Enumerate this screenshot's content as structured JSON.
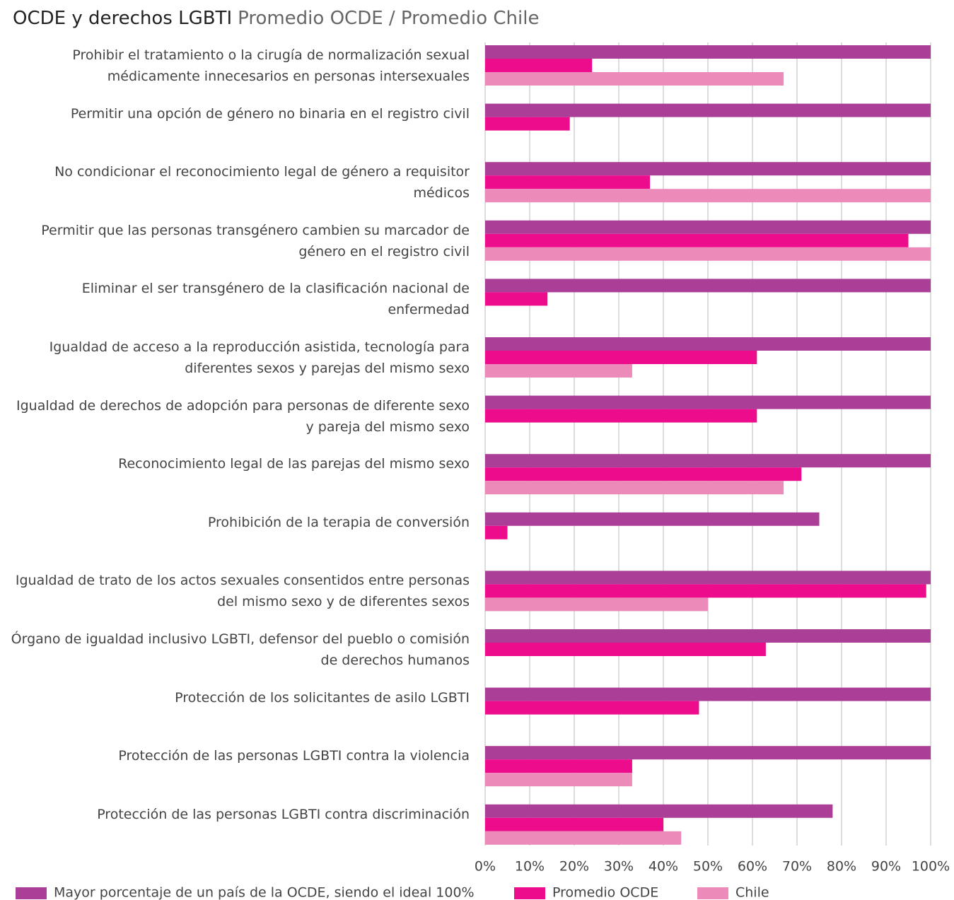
{
  "chart_data": {
    "type": "hbar",
    "title": "OCDE y derechos LGBTI",
    "subtitle": "Promedio OCDE / Promedio Chile",
    "categories": [
      "Prohibir el tratamiento o la cirugía de normalización sexual médicamente innecesarios en personas intersexuales",
      "Permitir una opción de género no binaria en el registro civil",
      "No condicionar el reconocimiento legal de género a requisitor médicos",
      "Permitir que las personas transgénero cambien su marcador de género en el registro civil",
      "Eliminar el ser transgénero de la clasificación nacional de enfermedad",
      "Igualdad de acceso a la reproducción asistida, tecnología para diferentes sexos y parejas del mismo sexo",
      "Igualdad de derechos de adopción para personas de diferente sexo y pareja del mismo sexo",
      "Reconocimiento legal de las parejas del mismo sexo",
      "Prohibición de la terapia de conversión",
      "Igualdad de trato de los actos sexuales consentidos entre personas del mismo sexo y de diferentes sexos",
      "Órgano de igualdad inclusivo LGBTI, defensor del pueblo o comisión de derechos humanos",
      "Protección de los solicitantes de asilo LGBTI",
      "Protección de las personas LGBTI contra la violencia",
      "Protección de las personas LGBTI contra discriminación"
    ],
    "series": [
      {
        "name": "Mayor porcentaje de un país de la OCDE, siendo el ideal 100%",
        "color": "#ab3f98",
        "values": [
          100,
          100,
          100,
          100,
          100,
          100,
          100,
          100,
          75,
          100,
          100,
          100,
          100,
          78
        ]
      },
      {
        "name": "Promedio OCDE",
        "color": "#ed0c8c",
        "values": [
          24,
          19,
          37,
          95,
          14,
          61,
          61,
          71,
          5,
          99,
          63,
          48,
          33,
          40
        ]
      },
      {
        "name": "Chile",
        "color": "#ec8ab9",
        "values": [
          67,
          null,
          100,
          100,
          null,
          33,
          null,
          67,
          null,
          50,
          null,
          null,
          33,
          44
        ]
      }
    ],
    "xlim": [
      0,
      100
    ],
    "xticks": [
      {
        "value": 0,
        "label": "0%"
      },
      {
        "value": 10,
        "label": "10%"
      },
      {
        "value": 20,
        "label": "20%"
      },
      {
        "value": 30,
        "label": "30%"
      },
      {
        "value": 40,
        "label": "40%"
      },
      {
        "value": 50,
        "label": "50%"
      },
      {
        "value": 60,
        "label": "60%"
      },
      {
        "value": 70,
        "label": "70%"
      },
      {
        "value": 80,
        "label": "80%"
      },
      {
        "value": 90,
        "label": "90%"
      },
      {
        "value": 100,
        "label": "100%"
      }
    ],
    "grid": true
  }
}
